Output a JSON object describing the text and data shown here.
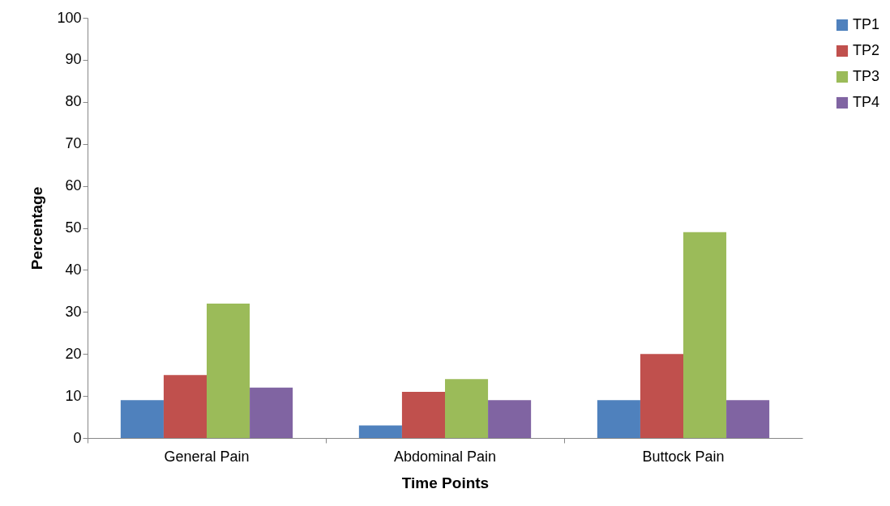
{
  "chart_data": {
    "type": "bar",
    "xlabel": "Time Points",
    "ylabel": "Percentage",
    "categories": [
      "General Pain",
      "Abdominal Pain",
      "Buttock Pain"
    ],
    "series": [
      {
        "name": "TP1",
        "color": "#4f81bd",
        "values": [
          9,
          3,
          9
        ]
      },
      {
        "name": "TP2",
        "color": "#c0504d",
        "values": [
          15,
          11,
          20
        ]
      },
      {
        "name": "TP3",
        "color": "#9bbb59",
        "values": [
          32,
          14,
          49
        ]
      },
      {
        "name": "TP4",
        "color": "#8064a2",
        "values": [
          12,
          9,
          9
        ]
      }
    ],
    "ylim": [
      0,
      100
    ],
    "yticks": [
      0,
      10,
      20,
      30,
      40,
      50,
      60,
      70,
      80,
      90,
      100
    ],
    "grid": false,
    "legend": "right"
  }
}
